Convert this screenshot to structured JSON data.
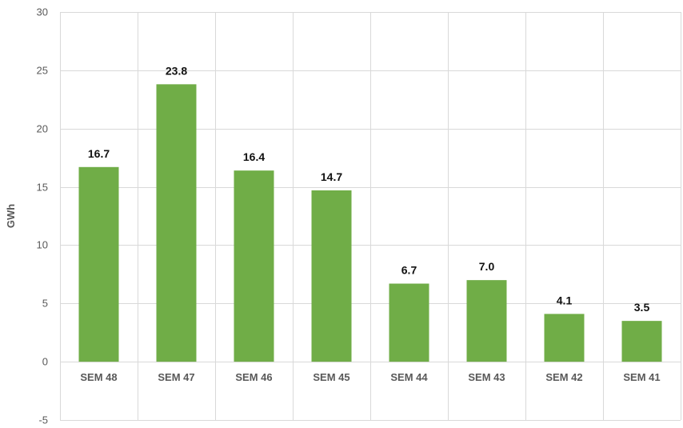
{
  "chart_data": {
    "type": "bar",
    "categories": [
      "SEM 48",
      "SEM 47",
      "SEM 46",
      "SEM 45",
      "SEM 44",
      "SEM 43",
      "SEM 42",
      "SEM 41"
    ],
    "values": [
      16.7,
      23.8,
      16.4,
      14.7,
      6.7,
      7.0,
      4.1,
      3.5
    ],
    "data_labels": [
      "16.7",
      "23.8",
      "16.4",
      "14.7",
      "6.7",
      "7.0",
      "4.1",
      "3.5"
    ],
    "ylabel": "GWh",
    "ylim": [
      -5,
      30
    ],
    "yticks": [
      -5,
      0,
      5,
      10,
      15,
      20,
      25,
      30
    ],
    "grid": true,
    "bar_color": "#70ad47"
  }
}
